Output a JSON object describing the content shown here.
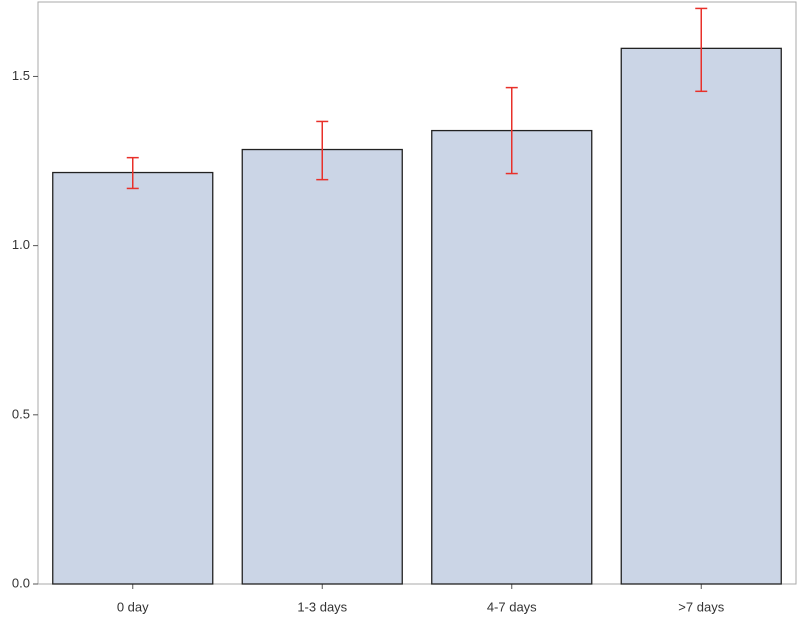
{
  "chart_data": {
    "type": "bar",
    "categories": [
      "0 day",
      "1-3 days",
      "4-7 days",
      ">7 days"
    ],
    "values": [
      1.216,
      1.284,
      1.34,
      1.583
    ],
    "lower": [
      1.169,
      1.195,
      1.213,
      1.456
    ],
    "upper": [
      1.26,
      1.367,
      1.467,
      1.701
    ],
    "color": "#cbd5e6",
    "error_color": "#e8302a",
    "ylim": [
      0,
      1.72
    ],
    "yticks": [
      {
        "value": 0,
        "label": "0.0"
      },
      {
        "value": 0.5,
        "label": "0.5"
      },
      {
        "value": 1,
        "label": "1.0"
      },
      {
        "value": 1.5,
        "label": "1.5"
      }
    ],
    "grid": false
  }
}
